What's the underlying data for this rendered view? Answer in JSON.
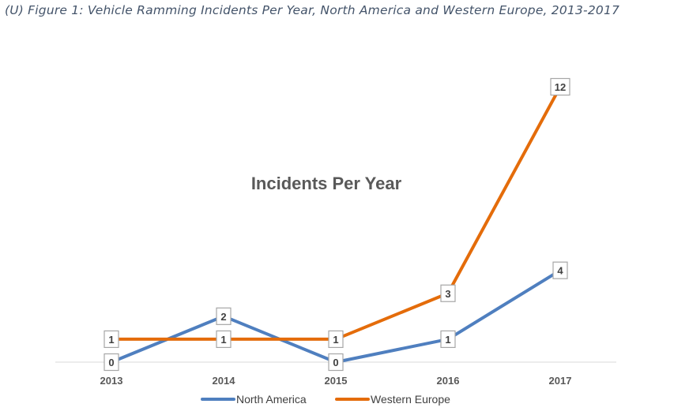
{
  "caption": "(U) Figure 1: Vehicle Ramming Incidents Per Year, North America and Western Europe, 2013-2017",
  "chart_data": {
    "type": "line",
    "title": "Incidents Per Year",
    "categories": [
      "2013",
      "2014",
      "2015",
      "2016",
      "2017"
    ],
    "series": [
      {
        "name": "North America",
        "values": [
          0,
          2,
          0,
          1,
          4
        ],
        "color": "#4f7fbf"
      },
      {
        "name": "Western Europe",
        "values": [
          1,
          1,
          1,
          3,
          12
        ],
        "color": "#e46c0a"
      }
    ],
    "ylim": [
      0,
      12
    ],
    "grid": false,
    "legend": "bottom",
    "data_labels": true
  }
}
